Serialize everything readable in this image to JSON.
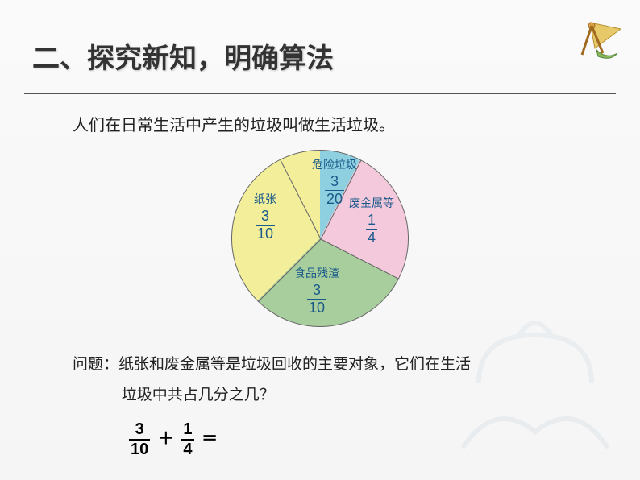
{
  "title": "二、探究新知，明确算法",
  "intro": "人们在日常生活中产生的垃圾叫做生活垃圾。",
  "pie": {
    "segments": [
      {
        "label": "危险垃圾",
        "frac_num": "3",
        "frac_den": "20",
        "value": 0.15,
        "color": "#8ed0e0"
      },
      {
        "label": "废金属等",
        "frac_num": "1",
        "frac_den": "4",
        "value": 0.25,
        "color": "#f4c9dc"
      },
      {
        "label": "食品残渣",
        "frac_num": "3",
        "frac_den": "10",
        "value": 0.3,
        "color": "#a8ce9e"
      },
      {
        "label": "纸张",
        "frac_num": "3",
        "frac_den": "10",
        "value": 0.3,
        "color": "#f2ee9a"
      }
    ],
    "border_color": "#666",
    "label_color": "#1a5a8a",
    "label_fontsize": 14,
    "frac_fontsize": 18
  },
  "question_line1": "问题：纸张和废金属等是垃圾回收的主要对象，它们在生活",
  "question_line2": "垃圾中共占几分之几？",
  "equation": {
    "left_num": "3",
    "left_den": "10",
    "op": "＋",
    "right_num": "1",
    "right_den": "4",
    "eq": "＝"
  },
  "decor": {
    "icon_colors": {
      "compass": "#d9a441",
      "leaf": "#8bb85c",
      "triangle": "#e8c96a"
    },
    "watermark_color": "#5b8aa6"
  }
}
